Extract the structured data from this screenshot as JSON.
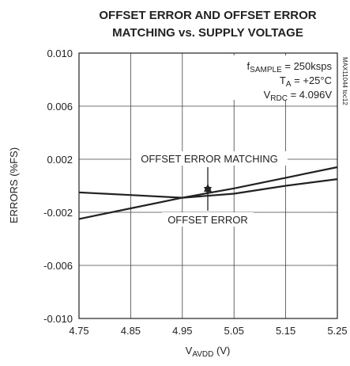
{
  "chart_data": {
    "type": "line",
    "title": [
      "OFFSET ERROR AND OFFSET ERROR",
      "MATCHING vs. SUPPLY VOLTAGE"
    ],
    "x_label": [
      "V",
      "AVDD",
      " (V)"
    ],
    "y_label": "ERRORS (%FS)",
    "side_note": "MAX11044 toc12",
    "conditions": [
      [
        "f",
        "SAMPLE",
        " = 250ksps"
      ],
      [
        "T",
        "A",
        " = +25°C"
      ],
      [
        "V",
        "RDC",
        " = 4.096V"
      ]
    ],
    "x": [
      4.75,
      4.85,
      4.95,
      5.05,
      5.15,
      5.25
    ],
    "series": [
      {
        "name": "OFFSET ERROR",
        "color": "#222222",
        "values": [
          -0.0025,
          -0.0017,
          -0.0009,
          -0.0002,
          0.0006,
          0.0014
        ]
      },
      {
        "name": "OFFSET ERROR MATCHING",
        "color": "#222222",
        "values": [
          -0.0005,
          -0.0007,
          -0.0009,
          -0.0006,
          0.0,
          0.0005
        ]
      }
    ],
    "xlim": [
      4.75,
      5.25
    ],
    "xticks": [
      4.75,
      4.85,
      4.95,
      5.05,
      5.15,
      5.25
    ],
    "ylim": [
      -0.01,
      0.01
    ],
    "yticks": [
      {
        "value": -0.01,
        "label": "-0.010"
      },
      {
        "value": -0.006,
        "label": "-0.006"
      },
      {
        "value": -0.002,
        "label": "-0.002"
      },
      {
        "value": 0.002,
        "label": "0.002"
      },
      {
        "value": 0.006,
        "label": "0.006"
      },
      {
        "value": 0.01,
        "label": "0.010"
      }
    ],
    "grid": true
  }
}
